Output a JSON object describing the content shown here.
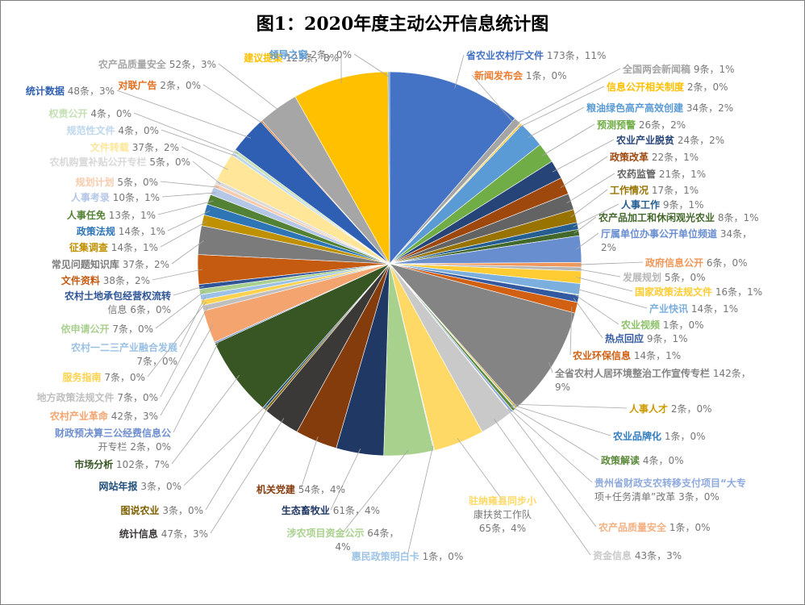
{
  "chart_data": {
    "type": "pie",
    "title": "图1：2020年度主动公开信息统计图",
    "slices": [
      {
        "name": "省农业农村厅文件",
        "value": 173,
        "pct": "11%",
        "color": "#4472c4"
      },
      {
        "name": "全国两会新闻稿",
        "value": 9,
        "pct": "1%",
        "color": "#a5a5a5"
      },
      {
        "name": "新闻发布会",
        "value": 1,
        "pct": "0%",
        "color": "#ed7d31"
      },
      {
        "name": "信息公开相关制度",
        "value": 2,
        "pct": "0%",
        "color": "#ffc000"
      },
      {
        "name": "粮油绿色高产高效创建",
        "value": 34,
        "pct": "2%",
        "color": "#5b9bd5"
      },
      {
        "name": "预测预警",
        "value": 26,
        "pct": "2%",
        "color": "#70ad47"
      },
      {
        "name": "农业产业脱贫",
        "value": 24,
        "pct": "2%",
        "color": "#264478"
      },
      {
        "name": "政策改革",
        "value": 22,
        "pct": "1%",
        "color": "#9e480e"
      },
      {
        "name": "农药监管",
        "value": 21,
        "pct": "1%",
        "color": "#636363"
      },
      {
        "name": "工作情况",
        "value": 17,
        "pct": "1%",
        "color": "#997300"
      },
      {
        "name": "人事工作",
        "value": 9,
        "pct": "1%",
        "color": "#255e91"
      },
      {
        "name": "农产品加工和休闲观光农业",
        "value": 8,
        "pct": "1%",
        "color": "#43682b"
      },
      {
        "name": "厅属单位办事公开单位频道",
        "value": 34,
        "pct": "2%",
        "color": "#698ed0"
      },
      {
        "name": "政府信息公开",
        "value": 6,
        "pct": "0%",
        "color": "#f1975a"
      },
      {
        "name": "发展规划",
        "value": 5,
        "pct": "0%",
        "color": "#b7b7b7"
      },
      {
        "name": "国家政策法规文件",
        "value": 16,
        "pct": "1%",
        "color": "#ffcd33"
      },
      {
        "name": "产业快讯",
        "value": 14,
        "pct": "1%",
        "color": "#7cafdd"
      },
      {
        "name": "农业视频",
        "value": 1,
        "pct": "0%",
        "color": "#8cc168"
      },
      {
        "name": "热点回应",
        "value": 9,
        "pct": "1%",
        "color": "#335aa1"
      },
      {
        "name": "农业环保信息",
        "value": 14,
        "pct": "1%",
        "color": "#d26012"
      },
      {
        "name": "全省农村人居环境整治工作宣传专栏",
        "value": 142,
        "pct": "9%",
        "color": "#848484"
      },
      {
        "name": "人事人才",
        "value": 2,
        "pct": "0%",
        "color": "#cc9a00"
      },
      {
        "name": "农业品牌化",
        "value": 1,
        "pct": "0%",
        "color": "#327dc2"
      },
      {
        "name": "政策解读",
        "value": 4,
        "pct": "0%",
        "color": "#5a8a39"
      },
      {
        "name": "贵州省财政支农转移支付项目“大专项+任务清单”改革",
        "value": 3,
        "pct": "0%",
        "color": "#8faadc"
      },
      {
        "name": "农产品质量安全",
        "value": 1,
        "pct": "0%",
        "color": "#f4b183"
      },
      {
        "name": "资金信息",
        "value": 43,
        "pct": "3%",
        "color": "#c9c9c9"
      },
      {
        "name": "驻纳雍县同步小康扶贫工作队",
        "value": 65,
        "pct": "4%",
        "color": "#ffd966"
      },
      {
        "name": "惠民政策明白卡",
        "value": 1,
        "pct": "0%",
        "color": "#9dc3e6"
      },
      {
        "name": "涉农项目资金公示",
        "value": 64,
        "pct": "4%",
        "color": "#a9d18e"
      },
      {
        "name": "生态畜牧业",
        "value": 61,
        "pct": "4%",
        "color": "#203864"
      },
      {
        "name": "机关党建",
        "value": 54,
        "pct": "4%",
        "color": "#843c0c"
      },
      {
        "name": "统计信息",
        "value": 47,
        "pct": "3%",
        "color": "#3b3838"
      },
      {
        "name": "图说农业",
        "value": 3,
        "pct": "0%",
        "color": "#7f6000"
      },
      {
        "name": "网站年报",
        "value": 3,
        "pct": "0%",
        "color": "#1f4e79"
      },
      {
        "name": "市场分析",
        "value": 102,
        "pct": "7%",
        "color": "#375623"
      },
      {
        "name": "财政预决算三公经费信息公开专栏",
        "value": 2,
        "pct": "0%",
        "color": "#6f8fcf"
      },
      {
        "name": "农村产业革命",
        "value": 42,
        "pct": "3%",
        "color": "#f4a46e"
      },
      {
        "name": "地方政策法规文件",
        "value": 7,
        "pct": "0%",
        "color": "#bfbfbf"
      },
      {
        "name": "服务指南",
        "value": 7,
        "pct": "0%",
        "color": "#ffd24d"
      },
      {
        "name": "农村一二三产业融合发展",
        "value": 7,
        "pct": "0%",
        "color": "#9bc2e6"
      },
      {
        "name": "依申请公开",
        "value": 7,
        "pct": "0%",
        "color": "#a9d08e"
      },
      {
        "name": "农村土地承包经营权流转信息",
        "value": 6,
        "pct": "0%",
        "color": "#2f5597"
      },
      {
        "name": "文件资料",
        "value": 38,
        "pct": "2%",
        "color": "#c55a11"
      },
      {
        "name": "常见问题知识库",
        "value": 37,
        "pct": "2%",
        "color": "#7b7b7b"
      },
      {
        "name": "征集调查",
        "value": 14,
        "pct": "1%",
        "color": "#bf9000"
      },
      {
        "name": "政策法规",
        "value": 14,
        "pct": "1%",
        "color": "#2e75b6"
      },
      {
        "name": "人事任免",
        "value": 13,
        "pct": "1%",
        "color": "#548235"
      },
      {
        "name": "人事考录",
        "value": 10,
        "pct": "1%",
        "color": "#b4c7e7"
      },
      {
        "name": "规划计划",
        "value": 5,
        "pct": "0%",
        "color": "#f8cbad"
      },
      {
        "name": "农机购置补贴公开专栏",
        "value": 5,
        "pct": "0%",
        "color": "#d9d9d9"
      },
      {
        "name": "文件转载",
        "value": 37,
        "pct": "2%",
        "color": "#ffe699"
      },
      {
        "name": "规范性文件",
        "value": 4,
        "pct": "0%",
        "color": "#bdd7ee"
      },
      {
        "name": "权责公开",
        "value": 4,
        "pct": "0%",
        "color": "#c5e0b4"
      },
      {
        "name": "统计数据",
        "value": 48,
        "pct": "3%",
        "color": "#2f5fb3"
      },
      {
        "name": "对联广告",
        "value": 2,
        "pct": "0%",
        "color": "#e07020"
      },
      {
        "name": "农产品质量安全",
        "value": 52,
        "pct": "3%",
        "color": "#a6a6a6"
      },
      {
        "name": "建议提案",
        "value": 123,
        "pct": "8%",
        "color": "#ffc000"
      },
      {
        "name": "领导之窗",
        "value": 2,
        "pct": "0%",
        "color": "#5b9bd5"
      }
    ]
  }
}
